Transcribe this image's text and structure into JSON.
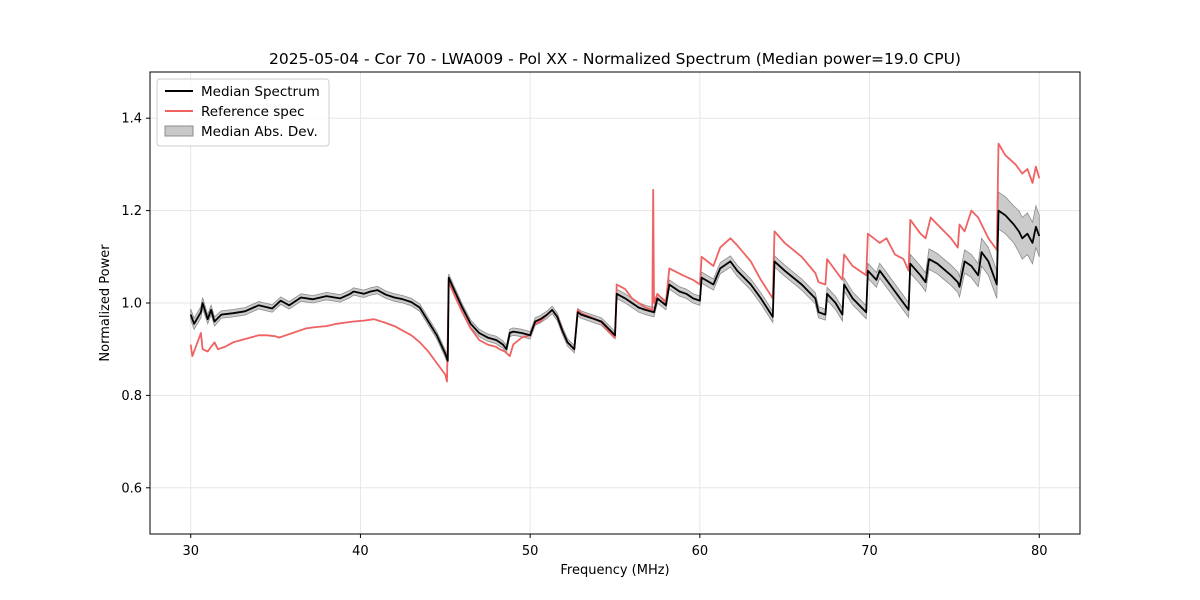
{
  "chart_data": {
    "type": "line",
    "title": "2025-05-04 - Cor 70 - LWA009 - Pol XX - Normalized Spectrum (Median power=19.0 CPU)",
    "xlabel": "Frequency (MHz)",
    "ylabel": "Normalized Power",
    "xlim": [
      27.6,
      82.4
    ],
    "ylim": [
      0.5,
      1.5
    ],
    "xticks": [
      30,
      40,
      50,
      60,
      70,
      80
    ],
    "yticks": [
      0.6,
      0.8,
      1.0,
      1.2,
      1.4
    ],
    "xtick_labels": [
      "30",
      "40",
      "50",
      "60",
      "70",
      "80"
    ],
    "ytick_labels": [
      "0.6",
      "0.8",
      "1.0",
      "1.2",
      "1.4"
    ],
    "grid": true,
    "legend_position": "top-left",
    "legend": [
      "Median Spectrum",
      "Reference spec",
      "Median Abs. Dev."
    ],
    "colors": {
      "median": "#000000",
      "reference": "#f06262",
      "mad_fill": "#c8c8c8",
      "mad_edge": "#8c8c8c"
    },
    "series": [
      {
        "name": "Median Spectrum",
        "x": [
          30.0,
          30.2,
          30.6,
          30.7,
          31.0,
          31.2,
          31.4,
          31.8,
          32.5,
          33.2,
          34.0,
          34.8,
          35.3,
          35.8,
          36.5,
          37.2,
          38.0,
          38.8,
          39.4,
          39.6,
          40.2,
          40.6,
          41.0,
          41.5,
          42.0,
          42.5,
          43.0,
          43.5,
          44.0,
          44.5,
          45.0,
          45.15,
          45.2,
          45.5,
          46.0,
          46.5,
          47.0,
          47.5,
          48.0,
          48.2,
          48.4,
          48.6,
          48.8,
          49.0,
          49.5,
          50.0,
          50.3,
          50.6,
          51.0,
          51.3,
          51.6,
          51.9,
          52.2,
          52.6,
          52.8,
          53.0,
          53.4,
          53.8,
          54.2,
          54.6,
          55.0,
          55.1,
          55.6,
          56.0,
          56.4,
          56.8,
          57.3,
          57.5,
          58.0,
          58.2,
          58.8,
          59.2,
          59.6,
          60.0,
          60.1,
          60.8,
          61.2,
          61.8,
          62.2,
          63.0,
          63.6,
          64.3,
          64.4,
          65.0,
          66.0,
          66.8,
          67.0,
          67.4,
          67.5,
          68.0,
          68.4,
          68.5,
          69.0,
          69.8,
          69.9,
          70.4,
          70.6,
          71.2,
          71.5,
          72.0,
          72.3,
          72.4,
          73.0,
          73.3,
          73.5,
          74.0,
          74.8,
          75.2,
          75.3,
          75.6,
          76.0,
          76.4,
          76.6,
          77.0,
          77.5,
          77.6,
          78.0,
          78.5,
          78.8,
          79.0,
          79.3,
          79.6,
          79.8,
          80.0
        ],
        "values": [
          0.975,
          0.955,
          0.98,
          1.0,
          0.965,
          0.985,
          0.96,
          0.975,
          0.978,
          0.982,
          0.995,
          0.988,
          1.005,
          0.995,
          1.012,
          1.008,
          1.015,
          1.01,
          1.02,
          1.025,
          1.02,
          1.025,
          1.028,
          1.018,
          1.012,
          1.008,
          1.002,
          0.99,
          0.96,
          0.93,
          0.89,
          0.875,
          1.055,
          1.03,
          0.99,
          0.955,
          0.935,
          0.925,
          0.92,
          0.915,
          0.91,
          0.9,
          0.935,
          0.938,
          0.935,
          0.93,
          0.96,
          0.965,
          0.975,
          0.985,
          0.97,
          0.94,
          0.915,
          0.9,
          0.98,
          0.975,
          0.97,
          0.965,
          0.96,
          0.945,
          0.93,
          1.02,
          1.01,
          1.0,
          0.99,
          0.985,
          0.98,
          1.01,
          0.995,
          1.04,
          1.025,
          1.02,
          1.01,
          1.005,
          1.055,
          1.04,
          1.075,
          1.09,
          1.07,
          1.04,
          1.01,
          0.97,
          1.09,
          1.07,
          1.04,
          1.01,
          0.98,
          0.975,
          1.02,
          1.0,
          0.975,
          1.04,
          1.01,
          0.98,
          1.07,
          1.05,
          1.07,
          1.04,
          1.025,
          1.0,
          0.985,
          1.085,
          1.06,
          1.045,
          1.095,
          1.085,
          1.06,
          1.045,
          1.035,
          1.09,
          1.08,
          1.06,
          1.11,
          1.09,
          1.04,
          1.2,
          1.19,
          1.17,
          1.155,
          1.14,
          1.15,
          1.13,
          1.165,
          1.145
        ],
        "mad": [
          0.012,
          0.012,
          0.012,
          0.012,
          0.01,
          0.01,
          0.01,
          0.008,
          0.008,
          0.008,
          0.008,
          0.008,
          0.008,
          0.008,
          0.008,
          0.008,
          0.008,
          0.008,
          0.008,
          0.008,
          0.008,
          0.008,
          0.008,
          0.008,
          0.008,
          0.008,
          0.008,
          0.008,
          0.008,
          0.008,
          0.008,
          0.008,
          0.008,
          0.008,
          0.008,
          0.008,
          0.008,
          0.008,
          0.008,
          0.008,
          0.008,
          0.008,
          0.008,
          0.008,
          0.008,
          0.008,
          0.008,
          0.008,
          0.008,
          0.008,
          0.008,
          0.008,
          0.008,
          0.008,
          0.008,
          0.008,
          0.008,
          0.008,
          0.008,
          0.008,
          0.008,
          0.01,
          0.01,
          0.01,
          0.01,
          0.01,
          0.01,
          0.01,
          0.01,
          0.01,
          0.01,
          0.01,
          0.01,
          0.01,
          0.012,
          0.012,
          0.012,
          0.012,
          0.012,
          0.012,
          0.012,
          0.012,
          0.012,
          0.012,
          0.012,
          0.012,
          0.012,
          0.012,
          0.014,
          0.014,
          0.014,
          0.014,
          0.014,
          0.014,
          0.016,
          0.016,
          0.016,
          0.016,
          0.016,
          0.016,
          0.016,
          0.02,
          0.02,
          0.02,
          0.022,
          0.022,
          0.022,
          0.022,
          0.022,
          0.025,
          0.025,
          0.025,
          0.03,
          0.03,
          0.03,
          0.04,
          0.04,
          0.04,
          0.045,
          0.045,
          0.045,
          0.045,
          0.045,
          0.045
        ]
      },
      {
        "name": "Reference spec",
        "x": [
          30.0,
          30.1,
          30.6,
          30.7,
          31.0,
          31.2,
          31.4,
          31.6,
          32.0,
          32.5,
          33.0,
          33.5,
          34.0,
          34.5,
          35.0,
          35.2,
          35.6,
          36.0,
          36.4,
          36.8,
          37.4,
          38.0,
          38.6,
          39.2,
          39.6,
          40.2,
          40.8,
          41.4,
          42.0,
          42.5,
          43.0,
          43.5,
          44.0,
          44.5,
          45.0,
          45.1,
          45.2,
          45.5,
          46.0,
          46.5,
          47.0,
          47.5,
          48.0,
          48.2,
          48.5,
          48.8,
          49.0,
          49.5,
          50.0,
          50.3,
          50.6,
          51.0,
          51.3,
          51.6,
          51.9,
          52.2,
          52.6,
          52.8,
          53.0,
          53.4,
          53.8,
          54.2,
          54.6,
          55.0,
          55.1,
          55.6,
          56.0,
          56.4,
          56.8,
          57.2,
          57.25,
          57.3,
          57.5,
          58.0,
          58.2,
          59.0,
          59.6,
          60.0,
          60.1,
          60.8,
          61.2,
          61.8,
          62.2,
          63.0,
          63.6,
          64.3,
          64.4,
          65.0,
          66.0,
          66.8,
          67.0,
          67.4,
          67.5,
          68.0,
          68.4,
          68.5,
          69.0,
          69.8,
          69.9,
          70.6,
          71.0,
          71.5,
          72.0,
          72.3,
          72.4,
          73.0,
          73.3,
          73.6,
          74.0,
          74.8,
          75.2,
          75.3,
          75.6,
          76.0,
          76.4,
          76.6,
          77.0,
          77.5,
          77.6,
          78.0,
          78.6,
          79.0,
          79.3,
          79.6,
          79.8,
          80.0
        ],
        "values": [
          0.91,
          0.885,
          0.935,
          0.9,
          0.895,
          0.905,
          0.915,
          0.9,
          0.905,
          0.915,
          0.92,
          0.925,
          0.93,
          0.93,
          0.928,
          0.925,
          0.93,
          0.935,
          0.94,
          0.945,
          0.948,
          0.95,
          0.955,
          0.958,
          0.96,
          0.962,
          0.965,
          0.958,
          0.95,
          0.94,
          0.93,
          0.915,
          0.895,
          0.87,
          0.845,
          0.83,
          1.045,
          1.02,
          0.98,
          0.945,
          0.92,
          0.91,
          0.905,
          0.9,
          0.895,
          0.885,
          0.91,
          0.925,
          0.93,
          0.955,
          0.96,
          0.975,
          0.985,
          0.97,
          0.94,
          0.915,
          0.9,
          0.985,
          0.978,
          0.972,
          0.966,
          0.958,
          0.94,
          0.925,
          1.04,
          1.03,
          1.01,
          1.0,
          0.99,
          0.985,
          1.245,
          1.0,
          1.02,
          1.0,
          1.075,
          1.06,
          1.05,
          1.04,
          1.1,
          1.08,
          1.12,
          1.14,
          1.125,
          1.09,
          1.05,
          1.01,
          1.155,
          1.13,
          1.1,
          1.065,
          1.045,
          1.04,
          1.095,
          1.07,
          1.05,
          1.105,
          1.08,
          1.06,
          1.15,
          1.13,
          1.14,
          1.105,
          1.095,
          1.07,
          1.18,
          1.15,
          1.14,
          1.185,
          1.17,
          1.14,
          1.12,
          1.17,
          1.155,
          1.2,
          1.185,
          1.17,
          1.14,
          1.115,
          1.345,
          1.32,
          1.3,
          1.28,
          1.29,
          1.26,
          1.295,
          1.27
        ]
      }
    ]
  }
}
